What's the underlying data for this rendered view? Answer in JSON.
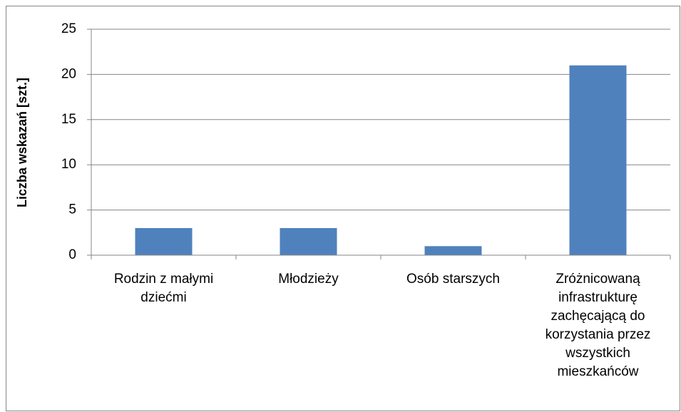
{
  "chart_data": {
    "type": "bar",
    "y_label": "Liczba wskazań [szt.]",
    "categories": [
      "Rodzin z małymi dziećmi",
      "Młodzieży",
      "Osób starszych",
      "Zróżnicowaną infrastrukturę zachęcającą do korzystania przez wszystkich mieszkańców"
    ],
    "values": [
      3,
      3,
      1,
      21
    ],
    "color": "#4f81bd",
    "ylim": [
      0,
      25
    ],
    "yticks": [
      0,
      5,
      10,
      15,
      20,
      25
    ],
    "grid": true
  }
}
